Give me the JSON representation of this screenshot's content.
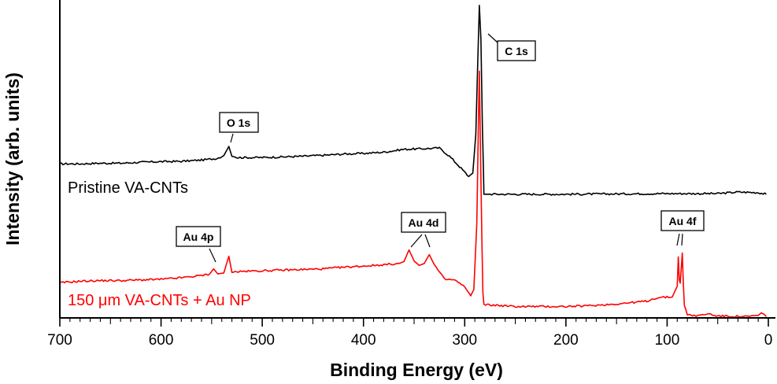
{
  "chart_data": {
    "type": "line",
    "title": "",
    "xlabel": "Binding Energy (eV)",
    "ylabel": "Intensity (arb. units)",
    "xlim": [
      700,
      0
    ],
    "x_reversed": true,
    "ylim": [
      0,
      1
    ],
    "yticks_shown": false,
    "x_ticks": [
      "700",
      "600",
      "500",
      "400",
      "300",
      "200",
      "100",
      "0"
    ],
    "colors": {
      "pristine": "#000000",
      "au": "#ff0000"
    },
    "series": [
      {
        "name": "Pristine VA-CNTs",
        "color": "#000000",
        "points": [
          [
            700,
            0.487
          ],
          [
            680,
            0.487
          ],
          [
            660,
            0.489
          ],
          [
            640,
            0.489
          ],
          [
            620,
            0.492
          ],
          [
            600,
            0.494
          ],
          [
            580,
            0.495
          ],
          [
            560,
            0.499
          ],
          [
            545,
            0.504
          ],
          [
            538,
            0.513
          ],
          [
            533,
            0.542
          ],
          [
            530,
            0.511
          ],
          [
            525,
            0.507
          ],
          [
            500,
            0.507
          ],
          [
            480,
            0.509
          ],
          [
            460,
            0.511
          ],
          [
            440,
            0.514
          ],
          [
            420,
            0.518
          ],
          [
            400,
            0.52
          ],
          [
            380,
            0.524
          ],
          [
            360,
            0.533
          ],
          [
            340,
            0.535
          ],
          [
            325,
            0.537
          ],
          [
            315,
            0.511
          ],
          [
            305,
            0.478
          ],
          [
            296,
            0.447
          ],
          [
            292,
            0.458
          ],
          [
            289,
            0.58
          ],
          [
            287,
            0.82
          ],
          [
            285.5,
            0.988
          ],
          [
            284,
            0.88
          ],
          [
            282.5,
            0.6
          ],
          [
            281.5,
            0.47
          ],
          [
            281,
            0.391
          ],
          [
            275,
            0.391
          ],
          [
            200,
            0.391
          ],
          [
            100,
            0.393
          ],
          [
            50,
            0.393
          ],
          [
            30,
            0.398
          ],
          [
            10,
            0.396
          ],
          [
            2,
            0.391
          ]
        ]
      },
      {
        "name": "150 μm VA-CNTs + Au NP",
        "color": "#ff0000",
        "points": [
          [
            700,
            0.111
          ],
          [
            680,
            0.116
          ],
          [
            660,
            0.118
          ],
          [
            640,
            0.118
          ],
          [
            620,
            0.12
          ],
          [
            600,
            0.122
          ],
          [
            580,
            0.127
          ],
          [
            560,
            0.134
          ],
          [
            552,
            0.139
          ],
          [
            548,
            0.155
          ],
          [
            544,
            0.139
          ],
          [
            538,
            0.142
          ],
          [
            533,
            0.195
          ],
          [
            530,
            0.145
          ],
          [
            520,
            0.147
          ],
          [
            500,
            0.149
          ],
          [
            480,
            0.151
          ],
          [
            460,
            0.153
          ],
          [
            440,
            0.155
          ],
          [
            420,
            0.16
          ],
          [
            400,
            0.164
          ],
          [
            380,
            0.168
          ],
          [
            365,
            0.172
          ],
          [
            360,
            0.178
          ],
          [
            355,
            0.215
          ],
          [
            350,
            0.18
          ],
          [
            345,
            0.166
          ],
          [
            340,
            0.172
          ],
          [
            335,
            0.2
          ],
          [
            330,
            0.168
          ],
          [
            320,
            0.122
          ],
          [
            310,
            0.12
          ],
          [
            300,
            0.098
          ],
          [
            294,
            0.07
          ],
          [
            291,
            0.09
          ],
          [
            288,
            0.3
          ],
          [
            286.5,
            0.6
          ],
          [
            285.5,
            0.78
          ],
          [
            284.5,
            0.55
          ],
          [
            283,
            0.25
          ],
          [
            282,
            0.08
          ],
          [
            281,
            0.042
          ],
          [
            270,
            0.04
          ],
          [
            250,
            0.036
          ],
          [
            200,
            0.036
          ],
          [
            180,
            0.038
          ],
          [
            150,
            0.044
          ],
          [
            120,
            0.053
          ],
          [
            110,
            0.064
          ],
          [
            95,
            0.066
          ],
          [
            90,
            0.1
          ],
          [
            89,
            0.193
          ],
          [
            88,
            0.12
          ],
          [
            87,
            0.11
          ],
          [
            85,
            0.205
          ],
          [
            84,
            0.11
          ],
          [
            83,
            0.04
          ],
          [
            80,
            0.011
          ],
          [
            70,
            0.006
          ],
          [
            60,
            0.013
          ],
          [
            50,
            0.006
          ],
          [
            20,
            0.004
          ],
          [
            10,
            0.008
          ],
          [
            7,
            0.016
          ],
          [
            4,
            0.011
          ],
          [
            2,
            0.004
          ]
        ]
      }
    ],
    "annotations": [
      {
        "text": "C 1s",
        "series": 0,
        "be": 285.5
      },
      {
        "text": "O 1s",
        "series": 0,
        "be": 533
      },
      {
        "text": "Au 4p",
        "series": 1,
        "be": 548
      },
      {
        "text": "Au 4d",
        "series": 1,
        "be": [
          355,
          335
        ]
      },
      {
        "text": "Au 4f",
        "series": 1,
        "be": [
          89,
          85
        ]
      }
    ]
  }
}
